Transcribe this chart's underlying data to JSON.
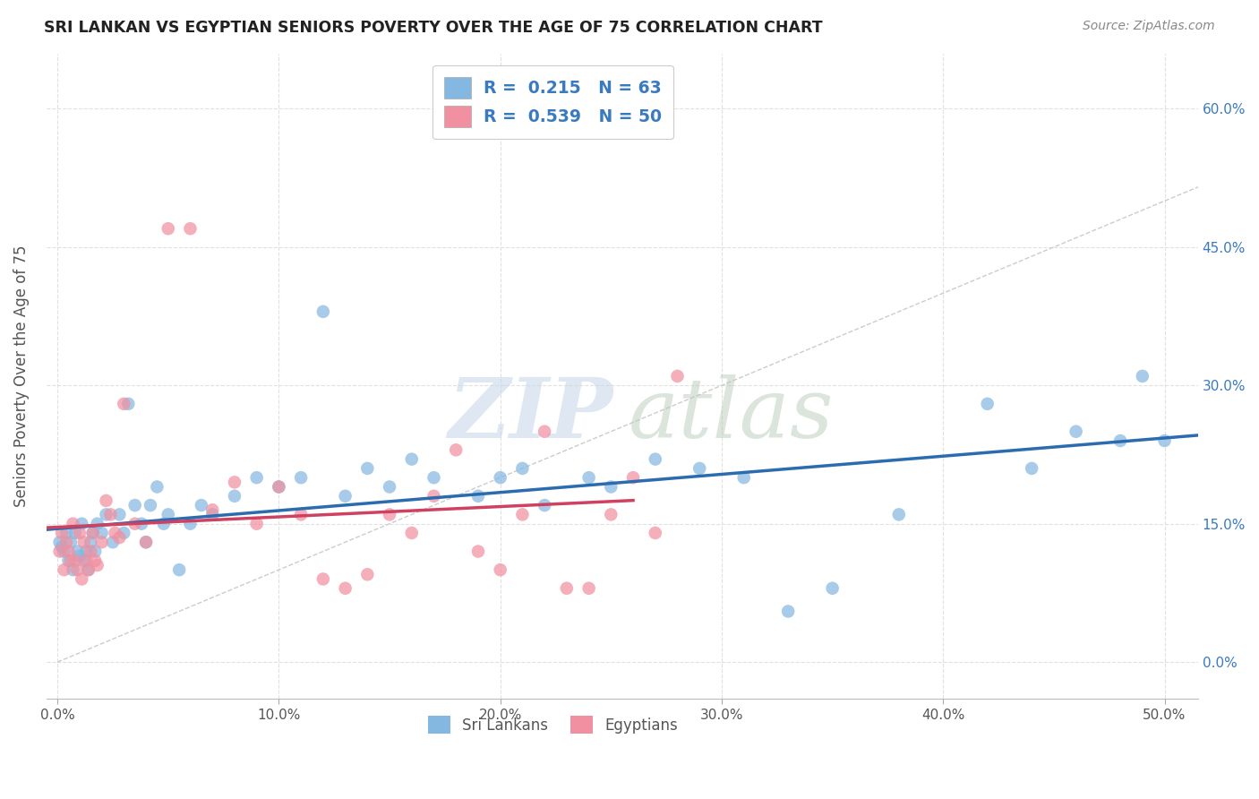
{
  "title": "SRI LANKAN VS EGYPTIAN SENIORS POVERTY OVER THE AGE OF 75 CORRELATION CHART",
  "source": "Source: ZipAtlas.com",
  "xlabel_ticks": [
    "0.0%",
    "10.0%",
    "20.0%",
    "30.0%",
    "40.0%",
    "50.0%"
  ],
  "ylabel_ticks": [
    "0.0%",
    "15.0%",
    "30.0%",
    "45.0%",
    "60.0%"
  ],
  "xlabel_vals": [
    0.0,
    0.1,
    0.2,
    0.3,
    0.4,
    0.5
  ],
  "ylabel_vals": [
    0.0,
    0.15,
    0.3,
    0.45,
    0.6
  ],
  "xlim": [
    -0.005,
    0.515
  ],
  "ylim": [
    -0.04,
    0.66
  ],
  "ylabel": "Seniors Poverty Over the Age of 75",
  "sri_lankans_color": "#85b8e0",
  "egyptians_color": "#f090a0",
  "trend_sri_color": "#2b6cb0",
  "trend_egy_color": "#d04060",
  "diagonal_color": "#cccccc",
  "background_color": "#ffffff",
  "grid_color": "#e0e0e0",
  "sri_lankans_x": [
    0.001,
    0.002,
    0.003,
    0.004,
    0.005,
    0.006,
    0.007,
    0.008,
    0.009,
    0.01,
    0.011,
    0.012,
    0.013,
    0.014,
    0.015,
    0.016,
    0.017,
    0.018,
    0.02,
    0.022,
    0.025,
    0.028,
    0.03,
    0.032,
    0.035,
    0.038,
    0.04,
    0.042,
    0.045,
    0.048,
    0.05,
    0.055,
    0.06,
    0.065,
    0.07,
    0.08,
    0.09,
    0.1,
    0.11,
    0.12,
    0.13,
    0.14,
    0.15,
    0.16,
    0.17,
    0.19,
    0.2,
    0.21,
    0.22,
    0.24,
    0.25,
    0.27,
    0.29,
    0.31,
    0.33,
    0.35,
    0.38,
    0.42,
    0.44,
    0.46,
    0.48,
    0.49,
    0.5
  ],
  "sri_lankans_y": [
    0.13,
    0.125,
    0.12,
    0.14,
    0.11,
    0.13,
    0.1,
    0.14,
    0.12,
    0.115,
    0.15,
    0.11,
    0.12,
    0.1,
    0.13,
    0.14,
    0.12,
    0.15,
    0.14,
    0.16,
    0.13,
    0.16,
    0.14,
    0.28,
    0.17,
    0.15,
    0.13,
    0.17,
    0.19,
    0.15,
    0.16,
    0.1,
    0.15,
    0.17,
    0.16,
    0.18,
    0.2,
    0.19,
    0.2,
    0.38,
    0.18,
    0.21,
    0.19,
    0.22,
    0.2,
    0.18,
    0.2,
    0.21,
    0.17,
    0.2,
    0.19,
    0.22,
    0.21,
    0.2,
    0.055,
    0.08,
    0.16,
    0.28,
    0.21,
    0.25,
    0.24,
    0.31,
    0.24
  ],
  "egyptians_x": [
    0.001,
    0.002,
    0.003,
    0.004,
    0.005,
    0.006,
    0.007,
    0.008,
    0.009,
    0.01,
    0.011,
    0.012,
    0.013,
    0.014,
    0.015,
    0.016,
    0.017,
    0.018,
    0.02,
    0.022,
    0.024,
    0.026,
    0.028,
    0.03,
    0.035,
    0.04,
    0.05,
    0.06,
    0.07,
    0.08,
    0.09,
    0.1,
    0.11,
    0.12,
    0.13,
    0.14,
    0.15,
    0.16,
    0.17,
    0.18,
    0.19,
    0.2,
    0.21,
    0.22,
    0.23,
    0.24,
    0.25,
    0.26,
    0.27,
    0.28
  ],
  "egyptians_y": [
    0.12,
    0.14,
    0.1,
    0.13,
    0.12,
    0.11,
    0.15,
    0.11,
    0.1,
    0.14,
    0.09,
    0.13,
    0.11,
    0.1,
    0.12,
    0.14,
    0.11,
    0.105,
    0.13,
    0.175,
    0.16,
    0.14,
    0.135,
    0.28,
    0.15,
    0.13,
    0.47,
    0.47,
    0.165,
    0.195,
    0.15,
    0.19,
    0.16,
    0.09,
    0.08,
    0.095,
    0.16,
    0.14,
    0.18,
    0.23,
    0.12,
    0.1,
    0.16,
    0.25,
    0.08,
    0.08,
    0.16,
    0.2,
    0.14,
    0.31
  ]
}
